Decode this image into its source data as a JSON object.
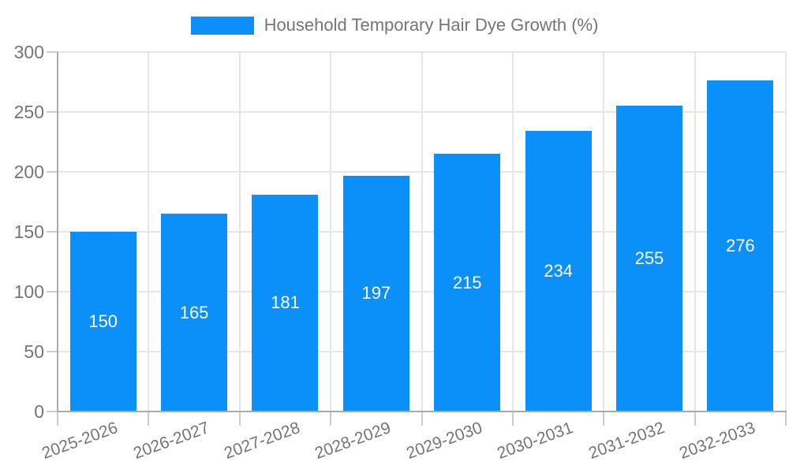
{
  "chart_data": {
    "type": "bar",
    "title": "",
    "legend": "Household Temporary Hair Dye Growth (%)",
    "legend_position": "top-center",
    "categories": [
      "2025-2026",
      "2026-2027",
      "2027-2028",
      "2028-2029",
      "2029-2030",
      "2030-2031",
      "2031-2032",
      "2032-2033"
    ],
    "values": [
      150,
      165,
      181,
      197,
      215,
      234,
      255,
      276
    ],
    "xlabel": "",
    "ylabel": "",
    "ylim": [
      0,
      300
    ],
    "yticks": [
      0,
      50,
      100,
      150,
      200,
      250,
      300
    ],
    "grid": true,
    "x_label_rotation_deg": -20,
    "value_labels": "centered-inside-bars",
    "colors": {
      "bar": "#0a90f8",
      "bar_value_text": "#ffffff",
      "axis_text": "#757575",
      "legend_text": "#757575",
      "gridline": "#e6e6e6",
      "tick": "#cccccc",
      "axis_line": "#ababab",
      "background": "#ffffff"
    }
  }
}
